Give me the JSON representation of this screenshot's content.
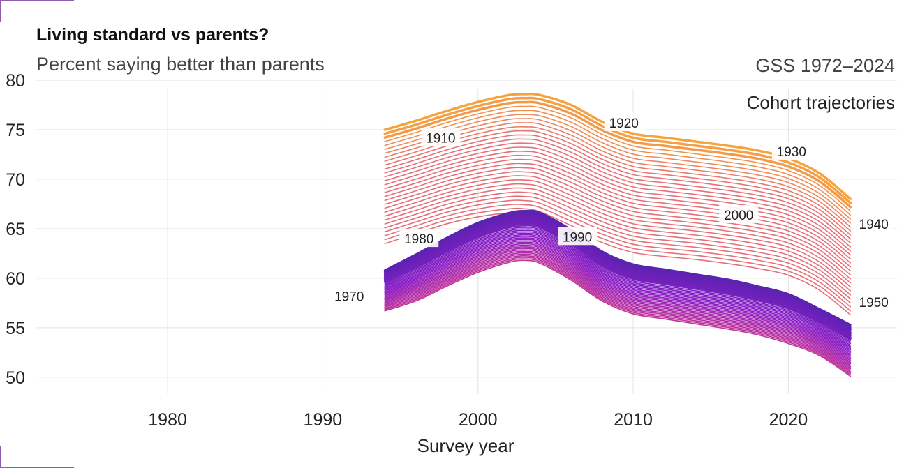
{
  "title": "Living standard vs parents?",
  "subtitle": "Percent saying better than parents",
  "source": "GSS 1972–2024",
  "note": "Cohort trajectories",
  "colors": {
    "oldest_cohorts": "#f7a33c",
    "middle_cohorts": "#e5707a",
    "young_cohorts": "#8a1ec8",
    "youngest_cohorts": "#5a23b0",
    "grid": "#e3e3e3"
  },
  "chart_data": {
    "type": "line",
    "title": "Living standard vs parents?",
    "subtitle": "Percent saying better than parents",
    "xlabel": "Survey year",
    "ylabel": "",
    "xlim": [
      1971,
      2027
    ],
    "ylim": [
      49,
      80
    ],
    "x_ticks": [
      1980,
      1990,
      2000,
      2010,
      2020
    ],
    "y_ticks": [
      50,
      55,
      60,
      65,
      70,
      75,
      80
    ],
    "grid": true,
    "series_count_approx": 80,
    "series_note": "one line per birth cohort; top band = oldest cohorts (1910s-1930s), bottom band = youngest cohorts",
    "band_upper": {
      "x": [
        1994,
        1996,
        1998,
        2000,
        2002,
        2003,
        2004,
        2006,
        2008,
        2010,
        2012,
        2014,
        2016,
        2018,
        2020,
        2022,
        2024
      ],
      "top": [
        75,
        75.9,
        76.9,
        77.8,
        78.5,
        78.6,
        78.5,
        77.5,
        75.8,
        74.6,
        74.2,
        73.8,
        73.4,
        72.9,
        72.1,
        70.6,
        68
      ],
      "bottom": [
        63.5,
        64.5,
        65.5,
        66.2,
        66.6,
        66.6,
        66.3,
        64.9,
        63.6,
        62.6,
        62.2,
        61.9,
        61.5,
        61,
        60.3,
        58.8,
        56.3
      ]
    },
    "band_lower": {
      "x": [
        1994,
        1996,
        1998,
        2000,
        2002,
        2003,
        2004,
        2006,
        2008,
        2010,
        2012,
        2014,
        2016,
        2018,
        2020,
        2022,
        2024
      ],
      "top": [
        60.8,
        62.4,
        64.1,
        65.6,
        66.6,
        66.8,
        66.6,
        64.9,
        62.7,
        61.4,
        60.9,
        60.4,
        59.9,
        59.2,
        58.4,
        56.9,
        55.3
      ],
      "bottom": [
        56.7,
        57.7,
        59.2,
        60.6,
        61.6,
        61.8,
        61.5,
        59.8,
        57.7,
        56.4,
        55.9,
        55.4,
        54.9,
        54.3,
        53.4,
        52.2,
        50.1
      ]
    },
    "labels": [
      {
        "text": "1910",
        "x": 1997.6,
        "y": 74.2
      },
      {
        "text": "1920",
        "x": 2009.4,
        "y": 75.7
      },
      {
        "text": "1930",
        "x": 2020.2,
        "y": 72.8
      },
      {
        "text": "1940",
        "x": 2025.5,
        "y": 65.5
      },
      {
        "text": "1950",
        "x": 2025.5,
        "y": 57.6
      },
      {
        "text": "1970",
        "x": 1991.7,
        "y": 58.2
      },
      {
        "text": "1980",
        "x": 1996.2,
        "y": 64.0
      },
      {
        "text": "1990",
        "x": 2006.4,
        "y": 64.2
      },
      {
        "text": "2000",
        "x": 2016.8,
        "y": 66.4
      }
    ]
  }
}
